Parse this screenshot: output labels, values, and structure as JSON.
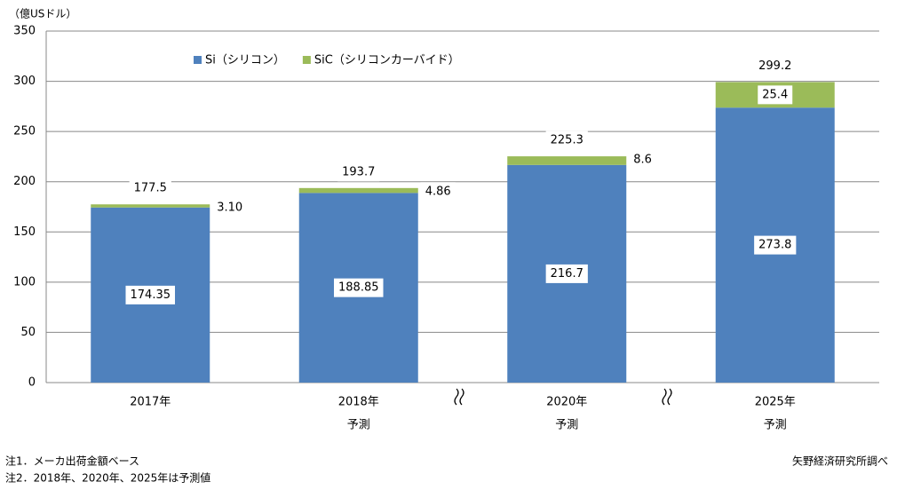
{
  "chart_data": {
    "type": "bar",
    "stacked": true,
    "y_label": "（億USドル）",
    "categories": [
      "2017年",
      "2018年",
      "2020年",
      "2025年"
    ],
    "category_notes": [
      null,
      "予測",
      "予測",
      "予測"
    ],
    "series": [
      {
        "name": "Si（シリコン）",
        "color": "#4f81bd",
        "values": [
          174.35,
          188.85,
          216.7,
          273.8
        ]
      },
      {
        "name": "SiC（シリコンカーバイド）",
        "color": "#9bbb59",
        "values": [
          3.1,
          4.86,
          8.6,
          25.4
        ],
        "value_labels": [
          "3.10",
          "4.86",
          "8.6",
          "25.4"
        ]
      }
    ],
    "totals": [
      177.5,
      193.7,
      225.3,
      299.2
    ],
    "ylim": [
      0,
      350
    ],
    "yticks": [
      0,
      50,
      100,
      150,
      200,
      250,
      300,
      350
    ],
    "grid": true,
    "notes": [
      "注1．メーカ出荷金額ベース",
      "注2．2018年、2020年、2025年は予測値"
    ],
    "source": "矢野経済研究所調べ"
  }
}
